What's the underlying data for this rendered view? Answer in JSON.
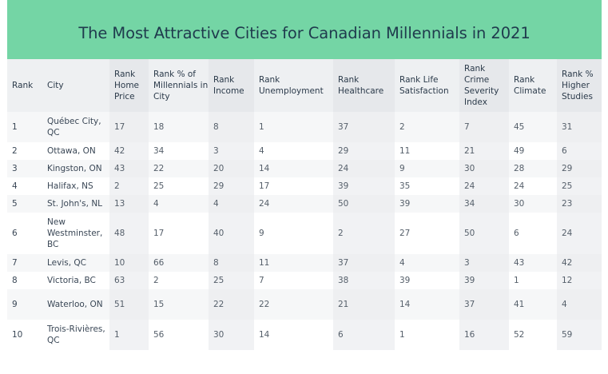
{
  "title": "The Most Attractive Cities for Canadian Millennials in 2021",
  "columns": [
    "Rank",
    "City",
    "Rank Home Price",
    "Rank % of Millennials in City",
    "Rank Income",
    "Rank Unemployment",
    "Rank Healthcare",
    "Rank Life Satisfaction",
    "Rank Crime Severity Index",
    "Rank Climate",
    "Rank % Higher Studies"
  ],
  "rows": [
    [
      "1",
      "Québec City, QC",
      "17",
      "18",
      "8",
      "1",
      "37",
      "2",
      "7",
      "45",
      "31"
    ],
    [
      "2",
      "Ottawa, ON",
      "42",
      "34",
      "3",
      "4",
      "29",
      "11",
      "21",
      "49",
      "6"
    ],
    [
      "3",
      "Kingston, ON",
      "43",
      "22",
      "20",
      "14",
      "24",
      "9",
      "30",
      "28",
      "29"
    ],
    [
      "4",
      "Halifax, NS",
      "2",
      "25",
      "29",
      "17",
      "39",
      "35",
      "24",
      "24",
      "25"
    ],
    [
      "5",
      "St. John's, NL",
      "13",
      "4",
      "4",
      "24",
      "50",
      "39",
      "34",
      "30",
      "23"
    ],
    [
      "6",
      "New Westminster, BC",
      "48",
      "17",
      "40",
      "9",
      "2",
      "27",
      "50",
      "6",
      "24"
    ],
    [
      "7",
      "Levis, QC",
      "10",
      "66",
      "8",
      "11",
      "37",
      "4",
      "3",
      "43",
      "42"
    ],
    [
      "8",
      "Victoria, BC",
      "63",
      "2",
      "25",
      "7",
      "38",
      "39",
      "39",
      "1",
      "12"
    ],
    [
      "9",
      "Waterloo, ON",
      "51",
      "15",
      "22",
      "22",
      "21",
      "14",
      "37",
      "41",
      "4"
    ],
    [
      "10",
      "Trois-Rivières, QC",
      "1",
      "56",
      "30",
      "14",
      "6",
      "1",
      "16",
      "52",
      "59"
    ]
  ],
  "colors": {
    "banner": "#74d5a5",
    "title_text": "#1f3a4d",
    "header_bg": "#eef0f2"
  }
}
